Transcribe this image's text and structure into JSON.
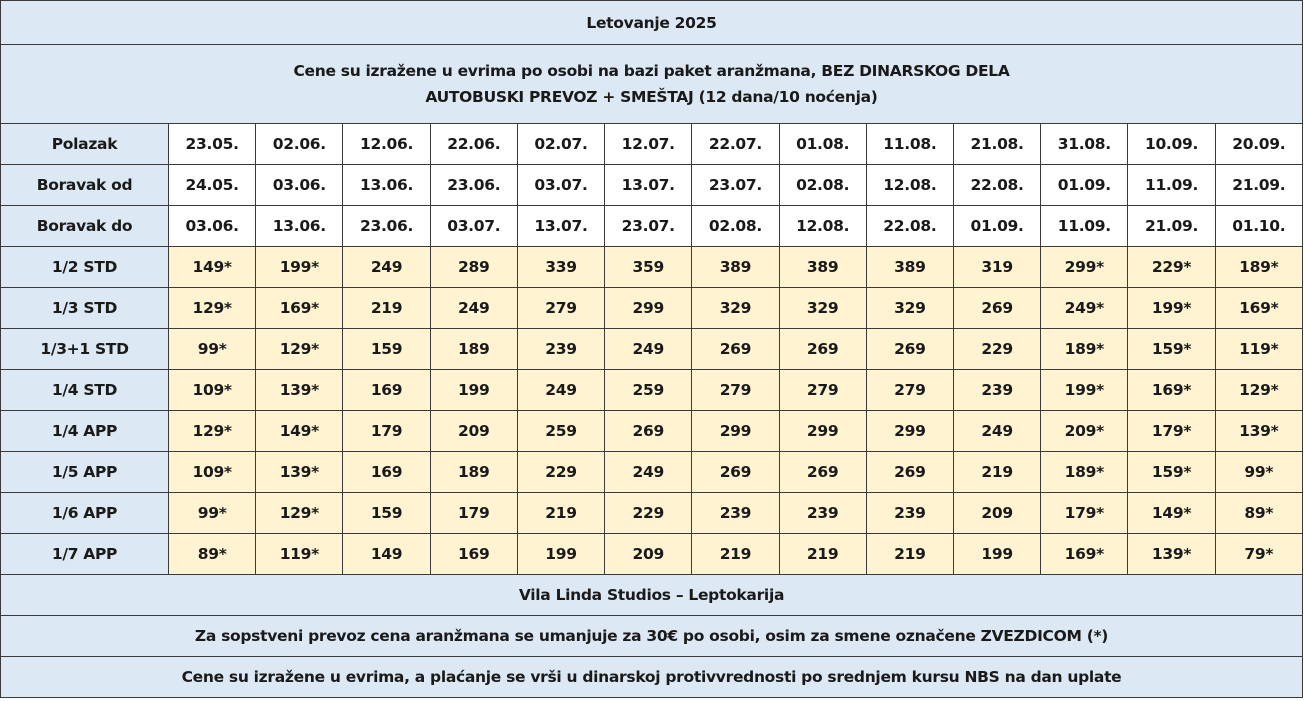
{
  "title": "Letovanje 2025",
  "subtitle_line1": "Cene su izražene u evrima po osobi na bazi paket aranžmana, BEZ DINARSKOG DELA",
  "subtitle_line2": "AUTOBUSKI PREVOZ + SMEŠTAJ (12 dana/10 noćenja)",
  "date_rows": [
    {
      "label": "Polazak",
      "values": [
        "23.05.",
        "02.06.",
        "12.06.",
        "22.06.",
        "02.07.",
        "12.07.",
        "22.07.",
        "01.08.",
        "11.08.",
        "21.08.",
        "31.08.",
        "10.09.",
        "20.09."
      ]
    },
    {
      "label": "Boravak od",
      "values": [
        "24.05.",
        "03.06.",
        "13.06.",
        "23.06.",
        "03.07.",
        "13.07.",
        "23.07.",
        "02.08.",
        "12.08.",
        "22.08.",
        "01.09.",
        "11.09.",
        "21.09."
      ]
    },
    {
      "label": "Boravak do",
      "values": [
        "03.06.",
        "13.06.",
        "23.06.",
        "03.07.",
        "13.07.",
        "23.07.",
        "02.08.",
        "12.08.",
        "22.08.",
        "01.09.",
        "11.09.",
        "21.09.",
        "01.10."
      ]
    }
  ],
  "price_rows": [
    {
      "label": "1/2 STD",
      "values": [
        "149*",
        "199*",
        "249",
        "289",
        "339",
        "359",
        "389",
        "389",
        "389",
        "319",
        "299*",
        "229*",
        "189*"
      ]
    },
    {
      "label": "1/3 STD",
      "values": [
        "129*",
        "169*",
        "219",
        "249",
        "279",
        "299",
        "329",
        "329",
        "329",
        "269",
        "249*",
        "199*",
        "169*"
      ]
    },
    {
      "label": "1/3+1 STD",
      "values": [
        "99*",
        "129*",
        "159",
        "189",
        "239",
        "249",
        "269",
        "269",
        "269",
        "229",
        "189*",
        "159*",
        "119*"
      ]
    },
    {
      "label": "1/4 STD",
      "values": [
        "109*",
        "139*",
        "169",
        "199",
        "249",
        "259",
        "279",
        "279",
        "279",
        "239",
        "199*",
        "169*",
        "129*"
      ]
    },
    {
      "label": "1/4 APP",
      "values": [
        "129*",
        "149*",
        "179",
        "209",
        "259",
        "269",
        "299",
        "299",
        "299",
        "249",
        "209*",
        "179*",
        "139*"
      ]
    },
    {
      "label": "1/5 APP",
      "values": [
        "109*",
        "139*",
        "169",
        "189",
        "229",
        "249",
        "269",
        "269",
        "269",
        "219",
        "189*",
        "159*",
        "99*"
      ]
    },
    {
      "label": "1/6 APP",
      "values": [
        "99*",
        "129*",
        "159",
        "179",
        "219",
        "229",
        "239",
        "239",
        "239",
        "209",
        "179*",
        "149*",
        "89*"
      ]
    },
    {
      "label": "1/7 APP",
      "values": [
        "89*",
        "119*",
        "149",
        "169",
        "199",
        "209",
        "219",
        "219",
        "219",
        "199",
        "169*",
        "139*",
        "79*"
      ]
    }
  ],
  "footer_lines": [
    "Vila Linda Studios – Leptokarija",
    "Za sopstveni prevoz cena aranžmana se umanjuje za 30€ po osobi, osim za smene označene ZVEZDICOM (*)",
    "Cene su izražene u evrima, a plaćanje se vrši u dinarskoj protivvrednosti po srednjem kursu NBS na dan uplate"
  ],
  "colors": {
    "label_bg": "#dce8f4",
    "price_bg": "#fff3d1",
    "date_bg": "#ffffff",
    "border": "#3a3a3a"
  }
}
